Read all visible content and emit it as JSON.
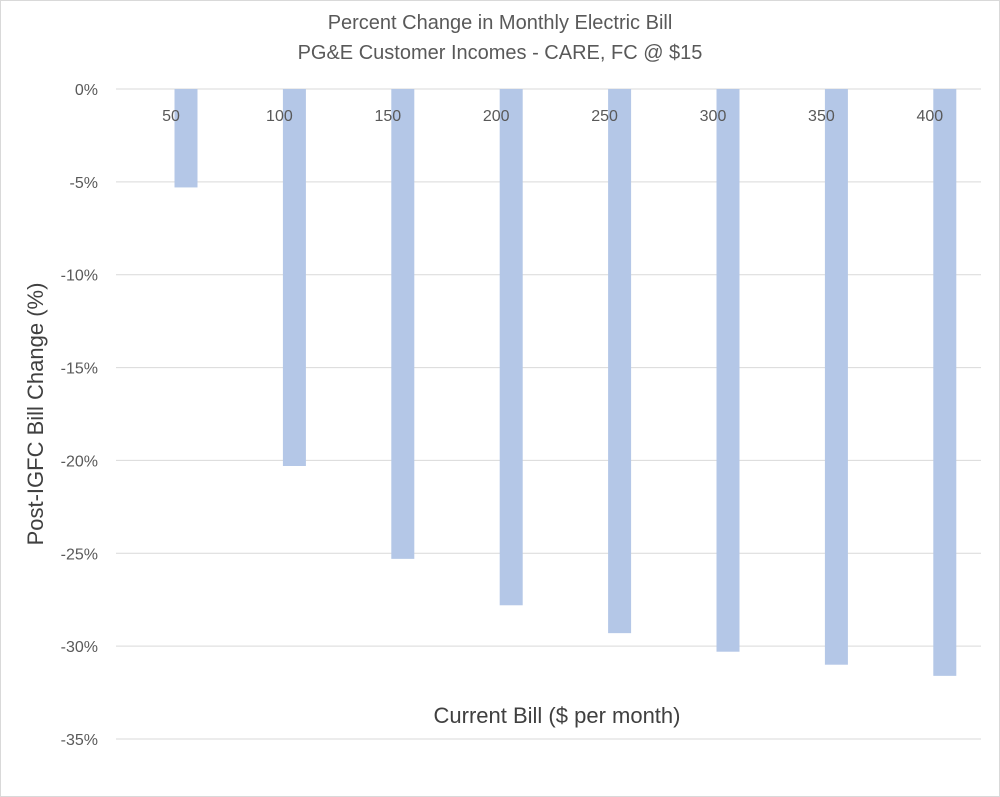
{
  "chart_data": {
    "type": "bar",
    "title": "Percent Change in Monthly Electric Bill",
    "subtitle": "PG&E Customer Incomes - CARE, FC @ $15",
    "xlabel": "Current Bill ($ per month)",
    "ylabel": "Post-IGFC Bill Change (%)",
    "categories": [
      "50",
      "100",
      "150",
      "200",
      "250",
      "300",
      "350",
      "400"
    ],
    "values": [
      -5.3,
      -20.3,
      -25.3,
      -27.8,
      -29.3,
      -30.3,
      -31.0,
      -31.6
    ],
    "ylim": [
      -35,
      0
    ],
    "yticks": [
      0,
      -5,
      -10,
      -15,
      -20,
      -25,
      -30,
      -35
    ],
    "ytick_labels": [
      "0%",
      "-5%",
      "-10%",
      "-15%",
      "-20%",
      "-25%",
      "-30%",
      "-35%"
    ],
    "grid": true,
    "legend": "none",
    "bar_color": "#b4c7e7",
    "grid_color": "#d9d9d9"
  }
}
